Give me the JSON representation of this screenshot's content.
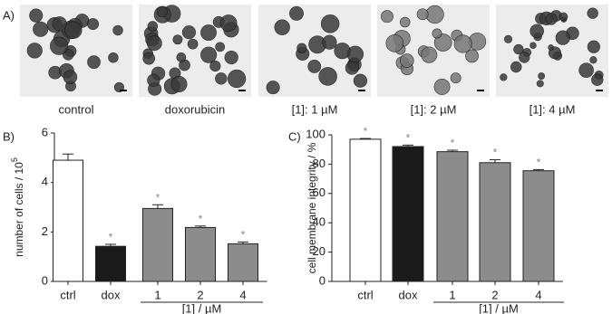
{
  "figure": {
    "panel_labels": [
      "A)",
      "B)",
      "C)"
    ],
    "images": [
      {
        "caption": "control"
      },
      {
        "caption": "doxorubicin"
      },
      {
        "caption": "[1]: 1 µM"
      },
      {
        "caption": "[1]: 2 µM"
      },
      {
        "caption": "[1]: 4 µM"
      }
    ]
  },
  "chart_data": [
    {
      "type": "bar",
      "y_label": "number of cells / 10",
      "y_label_sup": "5",
      "categories": [
        "ctrl",
        "dox",
        "1",
        "2",
        "4"
      ],
      "group_label": "[1] / µM",
      "values": [
        4.9,
        1.42,
        2.95,
        2.18,
        1.52
      ],
      "errors": [
        0.25,
        0.08,
        0.15,
        0.06,
        0.07
      ],
      "colors": [
        "#ffffff",
        "#1a1a1a",
        "#8c8c8c",
        "#8c8c8c",
        "#8c8c8c"
      ],
      "annotations": [
        null,
        "*",
        "*",
        "*",
        "*"
      ],
      "ylim": [
        0,
        6
      ],
      "yticks": [
        0,
        2,
        4,
        6
      ]
    },
    {
      "type": "bar",
      "y_label": "cell membrane integrity / %",
      "categories": [
        "ctrl",
        "dox",
        "1",
        "2",
        "4"
      ],
      "group_label": "[1] / µM",
      "values": [
        97,
        92,
        88.5,
        81,
        75.5
      ],
      "errors": [
        0.5,
        1,
        1,
        2,
        0.8
      ],
      "colors": [
        "#ffffff",
        "#1a1a1a",
        "#8c8c8c",
        "#8c8c8c",
        "#8c8c8c"
      ],
      "annotations": [
        "*",
        "*",
        "*",
        "*",
        "*"
      ],
      "ylim": [
        0,
        100
      ],
      "yticks": [
        0,
        20,
        40,
        60,
        80,
        100
      ]
    }
  ]
}
